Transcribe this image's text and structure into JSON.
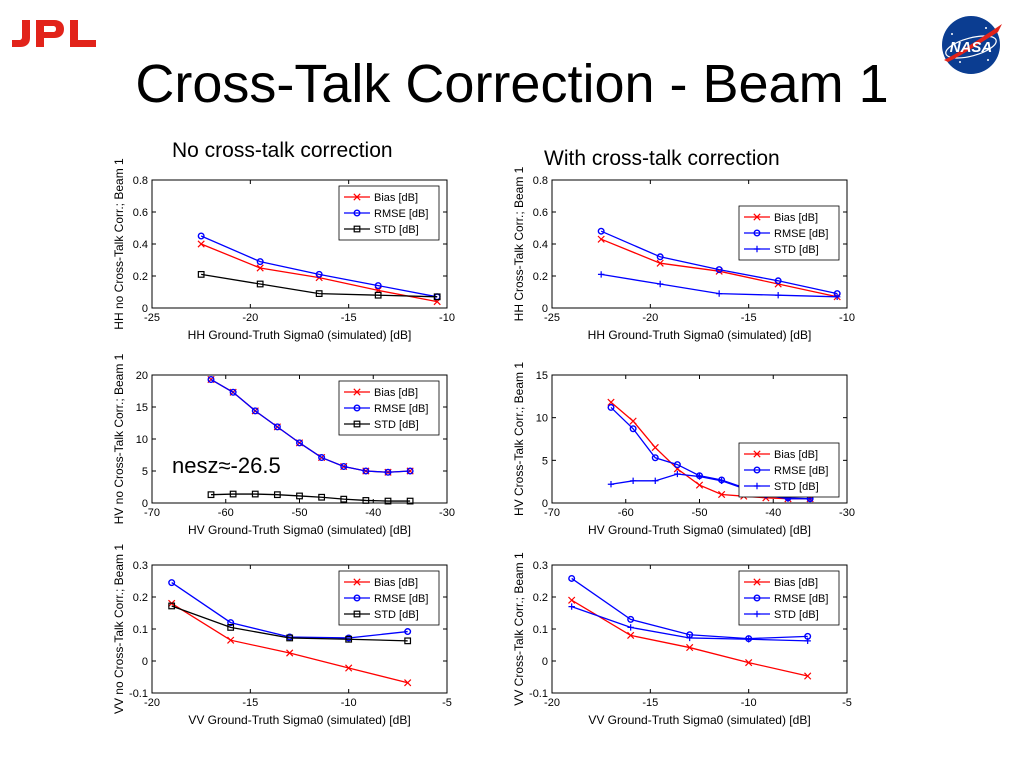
{
  "slide": {
    "title": "Cross-Talk Correction - Beam 1",
    "left_column_title": "No  cross-talk correction",
    "right_column_title": "With cross-talk correction",
    "annotation": "nesz≈-26.5",
    "logo_left": "JPL",
    "logo_right": "NASA"
  },
  "colors": {
    "bias": "#ff0000",
    "rmse": "#0000ff",
    "std_black": "#000000",
    "std_blue": "#0000ff",
    "jpl_red": "#e2231a",
    "nasa_blue": "#0b3d91"
  },
  "chart_data": [
    {
      "id": "hh-no",
      "type": "line",
      "xlabel": "HH Ground-Truth Sigma0 (simulated) [dB]",
      "ylabel": "HH no Cross-Talk Corr.; Beam 1",
      "xlim": [
        -25,
        -10
      ],
      "ylim": [
        0,
        0.8
      ],
      "xticks": [
        "-25",
        "-20",
        "-15",
        "-10"
      ],
      "yticks": [
        "0",
        "0.2",
        "0.4",
        "0.6",
        "0.8"
      ],
      "xtick_values": [
        -25,
        -20,
        -15,
        -10
      ],
      "ytick_values": [
        0,
        0.2,
        0.4,
        0.6,
        0.8
      ],
      "legend_position": "top-right",
      "series": [
        {
          "name": "Bias [dB]",
          "marker": "x",
          "color": "#ff0000",
          "x": [
            -22.5,
            -19.5,
            -16.5,
            -13.5,
            -10.5
          ],
          "y": [
            0.4,
            0.25,
            0.19,
            0.11,
            0.04
          ]
        },
        {
          "name": "RMSE [dB]",
          "marker": "o",
          "color": "#0000ff",
          "x": [
            -22.5,
            -19.5,
            -16.5,
            -13.5,
            -10.5
          ],
          "y": [
            0.45,
            0.29,
            0.21,
            0.14,
            0.07
          ]
        },
        {
          "name": "STD [dB]",
          "marker": "s",
          "color": "#000000",
          "x": [
            -22.5,
            -19.5,
            -16.5,
            -13.5,
            -10.5
          ],
          "y": [
            0.21,
            0.15,
            0.09,
            0.08,
            0.07
          ]
        }
      ]
    },
    {
      "id": "hh-with",
      "type": "line",
      "xlabel": "HH Ground-Truth Sigma0 (simulated) [dB]",
      "ylabel": "HH Cross-Talk Corr.; Beam 1",
      "xlim": [
        -25,
        -10
      ],
      "ylim": [
        0,
        0.8
      ],
      "xticks": [
        "-25",
        "-20",
        "-15",
        "-10"
      ],
      "yticks": [
        "0",
        "0.2",
        "0.4",
        "0.6",
        "0.8"
      ],
      "xtick_values": [
        -25,
        -20,
        -15,
        -10
      ],
      "ytick_values": [
        0,
        0.2,
        0.4,
        0.6,
        0.8
      ],
      "legend_position": "right",
      "series": [
        {
          "name": "Bias [dB]",
          "marker": "x",
          "color": "#ff0000",
          "x": [
            -22.5,
            -19.5,
            -16.5,
            -13.5,
            -10.5
          ],
          "y": [
            0.43,
            0.28,
            0.23,
            0.15,
            0.07
          ]
        },
        {
          "name": "RMSE [dB]",
          "marker": "o",
          "color": "#0000ff",
          "x": [
            -22.5,
            -19.5,
            -16.5,
            -13.5,
            -10.5
          ],
          "y": [
            0.48,
            0.32,
            0.24,
            0.17,
            0.09
          ]
        },
        {
          "name": "STD [dB]",
          "marker": "+",
          "color": "#0000ff",
          "x": [
            -22.5,
            -19.5,
            -16.5,
            -13.5,
            -10.5
          ],
          "y": [
            0.21,
            0.15,
            0.09,
            0.08,
            0.07
          ]
        }
      ]
    },
    {
      "id": "hv-no",
      "type": "line",
      "xlabel": "HV Ground-Truth Sigma0 (simulated) [dB]",
      "ylabel": "HV no Cross-Talk Corr.; Beam 1",
      "xlim": [
        -70,
        -30
      ],
      "ylim": [
        0,
        20
      ],
      "xticks": [
        "-70",
        "-60",
        "-50",
        "-40",
        "-30"
      ],
      "yticks": [
        "0",
        "5",
        "10",
        "15",
        "20"
      ],
      "xtick_values": [
        -70,
        -60,
        -50,
        -40,
        -30
      ],
      "ytick_values": [
        0,
        5,
        10,
        15,
        20
      ],
      "legend_position": "top-right",
      "series": [
        {
          "name": "Bias [dB]",
          "marker": "x",
          "color": "#ff0000",
          "x": [
            -62,
            -59,
            -56,
            -53,
            -50,
            -47,
            -44,
            -41,
            -38,
            -35
          ],
          "y": [
            19.3,
            17.3,
            14.4,
            11.9,
            9.4,
            7.1,
            5.7,
            5.0,
            4.8,
            5.0
          ]
        },
        {
          "name": "RMSE [dB]",
          "marker": "o",
          "color": "#0000ff",
          "x": [
            -62,
            -59,
            -56,
            -53,
            -50,
            -47,
            -44,
            -41,
            -38,
            -35
          ],
          "y": [
            19.3,
            17.3,
            14.4,
            11.9,
            9.4,
            7.1,
            5.7,
            5.0,
            4.8,
            5.0
          ]
        },
        {
          "name": "STD [dB]",
          "marker": "s",
          "color": "#000000",
          "x": [
            -62,
            -59,
            -56,
            -53,
            -50,
            -47,
            -44,
            -41,
            -38,
            -35
          ],
          "y": [
            1.3,
            1.4,
            1.4,
            1.3,
            1.1,
            0.9,
            0.6,
            0.4,
            0.3,
            0.3
          ]
        }
      ]
    },
    {
      "id": "hv-with",
      "type": "line",
      "xlabel": "HV Ground-Truth Sigma0 (simulated) [dB]",
      "ylabel": "HV Cross-Talk Corr.; Beam 1",
      "xlim": [
        -70,
        -30
      ],
      "ylim": [
        0,
        15
      ],
      "xticks": [
        "-70",
        "-60",
        "-50",
        "-40",
        "-30"
      ],
      "yticks": [
        "0",
        "5",
        "10",
        "15"
      ],
      "xtick_values": [
        -70,
        -60,
        -50,
        -40,
        -30
      ],
      "ytick_values": [
        0,
        5,
        10,
        15
      ],
      "legend_position": "bottom-right",
      "series": [
        {
          "name": "Bias [dB]",
          "marker": "x",
          "color": "#ff0000",
          "x": [
            -62,
            -59,
            -56,
            -53,
            -50,
            -47,
            -44,
            -41,
            -38,
            -35
          ],
          "y": [
            11.8,
            9.6,
            6.5,
            4.0,
            2.1,
            1.0,
            0.8,
            0.6,
            0.5,
            0.5
          ]
        },
        {
          "name": "RMSE [dB]",
          "marker": "o",
          "color": "#0000ff",
          "x": [
            -62,
            -59,
            -56,
            -53,
            -50,
            -47,
            -44,
            -41,
            -38,
            -35
          ],
          "y": [
            11.2,
            8.7,
            5.3,
            4.5,
            3.2,
            2.7,
            1.8,
            1.0,
            0.6,
            0.5
          ]
        },
        {
          "name": "STD [dB]",
          "marker": "+",
          "color": "#0000ff",
          "x": [
            -62,
            -59,
            -56,
            -53,
            -50,
            -47,
            -44,
            -41,
            -38,
            -35
          ],
          "y": [
            2.2,
            2.6,
            2.6,
            3.4,
            3.1,
            2.6,
            1.7,
            0.9,
            0.5,
            0.5
          ]
        }
      ]
    },
    {
      "id": "vv-no",
      "type": "line",
      "xlabel": "VV Ground-Truth Sigma0 (simulated) [dB]",
      "ylabel": "VV no Cross-Talk Corr.; Beam 1",
      "xlim": [
        -20,
        -5
      ],
      "ylim": [
        -0.1,
        0.3
      ],
      "xticks": [
        "-20",
        "-15",
        "-10",
        "-5"
      ],
      "yticks": [
        "-0.1",
        "0",
        "0.1",
        "0.2",
        "0.3"
      ],
      "xtick_values": [
        -20,
        -15,
        -10,
        -5
      ],
      "ytick_values": [
        -0.1,
        0,
        0.1,
        0.2,
        0.3
      ],
      "legend_position": "top-right",
      "series": [
        {
          "name": "Bias [dB]",
          "marker": "x",
          "color": "#ff0000",
          "x": [
            -19,
            -16,
            -13,
            -10,
            -7
          ],
          "y": [
            0.18,
            0.065,
            0.025,
            -0.022,
            -0.068
          ]
        },
        {
          "name": "RMSE [dB]",
          "marker": "o",
          "color": "#0000ff",
          "x": [
            -19,
            -16,
            -13,
            -10,
            -7
          ],
          "y": [
            0.245,
            0.12,
            0.075,
            0.072,
            0.092
          ]
        },
        {
          "name": "STD [dB]",
          "marker": "s",
          "color": "#000000",
          "x": [
            -19,
            -16,
            -13,
            -10,
            -7
          ],
          "y": [
            0.172,
            0.105,
            0.072,
            0.068,
            0.063
          ]
        }
      ]
    },
    {
      "id": "vv-with",
      "type": "line",
      "xlabel": "VV Ground-Truth Sigma0 (simulated) [dB]",
      "ylabel": "VV Cross-Talk Corr.; Beam 1",
      "xlim": [
        -20,
        -5
      ],
      "ylim": [
        -0.1,
        0.3
      ],
      "xticks": [
        "-20",
        "-15",
        "-10",
        "-5"
      ],
      "yticks": [
        "-0.1",
        "0",
        "0.1",
        "0.2",
        "0.3"
      ],
      "xtick_values": [
        -20,
        -15,
        -10,
        -5
      ],
      "ytick_values": [
        -0.1,
        0,
        0.1,
        0.2,
        0.3
      ],
      "legend_position": "top-right",
      "series": [
        {
          "name": "Bias [dB]",
          "marker": "x",
          "color": "#ff0000",
          "x": [
            -19,
            -16,
            -13,
            -10,
            -7
          ],
          "y": [
            0.19,
            0.08,
            0.042,
            -0.005,
            -0.047
          ]
        },
        {
          "name": "RMSE [dB]",
          "marker": "o",
          "color": "#0000ff",
          "x": [
            -19,
            -16,
            -13,
            -10,
            -7
          ],
          "y": [
            0.258,
            0.13,
            0.082,
            0.07,
            0.077
          ]
        },
        {
          "name": "STD [dB]",
          "marker": "+",
          "color": "#0000ff",
          "x": [
            -19,
            -16,
            -13,
            -10,
            -7
          ],
          "y": [
            0.17,
            0.105,
            0.072,
            0.068,
            0.063
          ]
        }
      ]
    }
  ]
}
